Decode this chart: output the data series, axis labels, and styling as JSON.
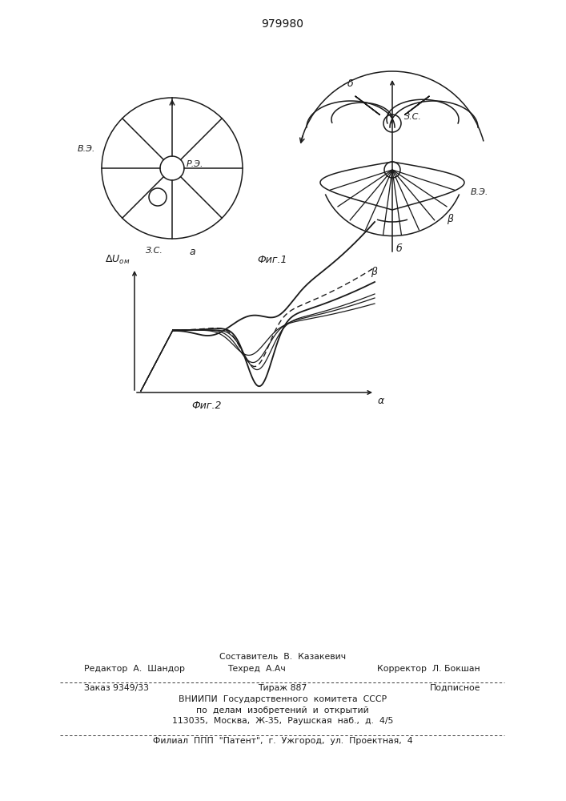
{
  "title": "979980",
  "fig1_label": "Фиг.1",
  "fig2_label": "Фиг.2",
  "label_VE": "В.Э.",
  "label_RE": "Р.Э.",
  "label_ZC": "З.С.",
  "label_a_fig": "a",
  "label_b_fig": "б",
  "label_beta": "β",
  "label_delta": "δ",
  "line1_sestavitel": "Составитель  В.  Казакевич",
  "line2_redaktor": "Редактор  А.  Шандор",
  "line2_tehred": "Техред  А.Ач",
  "line2_korrektor": "Корректор  Л. Бокшан",
  "line3_zakaz": "Заказ 9349/33",
  "line3_tirazh": "Тираж 887",
  "line3_podpisnoe": "Подписное",
  "line4": "ВНИИПИ  Государственного  комитета  СССР",
  "line5": "по  делам  изобретений  и  открытий",
  "line6": "113035,  Москва,  Ж-35,  Раушская  наб.,  д.  4/5",
  "line7": "Филиал  ППП  \"Патент\",  г.  Ужгород,  ул.  Проектная,  4",
  "bg": "#ffffff",
  "lc": "#1a1a1a"
}
